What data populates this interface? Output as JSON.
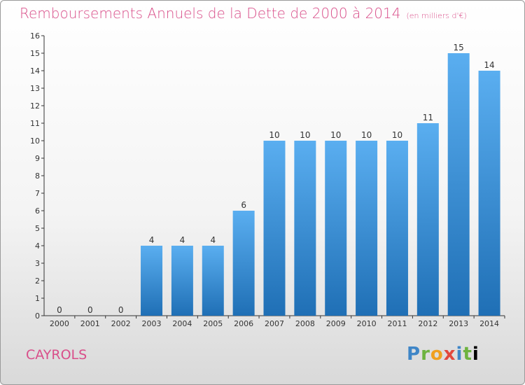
{
  "header": {
    "title": "Remboursements Annuels de la Dette de 2000 à 2014",
    "unit": "(en milliers d'€)"
  },
  "footer": {
    "town": "CAYROLS",
    "brand": "Proxiti"
  },
  "chart_data": {
    "type": "bar",
    "title": "Remboursements Annuels de la Dette de 2000 à 2014",
    "subtitle": "(en milliers d'€)",
    "categories": [
      "2000",
      "2001",
      "2002",
      "2003",
      "2004",
      "2005",
      "2006",
      "2007",
      "2008",
      "2009",
      "2010",
      "2011",
      "2012",
      "2013",
      "2014"
    ],
    "values": [
      0,
      0,
      0,
      4,
      4,
      4,
      6,
      10,
      10,
      10,
      10,
      10,
      11,
      15,
      14
    ],
    "data_labels": [
      "0",
      "0",
      "0",
      "4",
      "4",
      "4",
      "6",
      "10",
      "10",
      "10",
      "10",
      "10",
      "11",
      "15",
      "14"
    ],
    "yticks": [
      "0",
      "1",
      "2",
      "3",
      "4",
      "5",
      "6",
      "7",
      "8",
      "9",
      "10",
      "11",
      "12",
      "13",
      "14",
      "15",
      "16"
    ],
    "ylim": [
      0,
      16
    ],
    "bar_color": "#4a9fdf",
    "grid": false,
    "legend": false
  }
}
